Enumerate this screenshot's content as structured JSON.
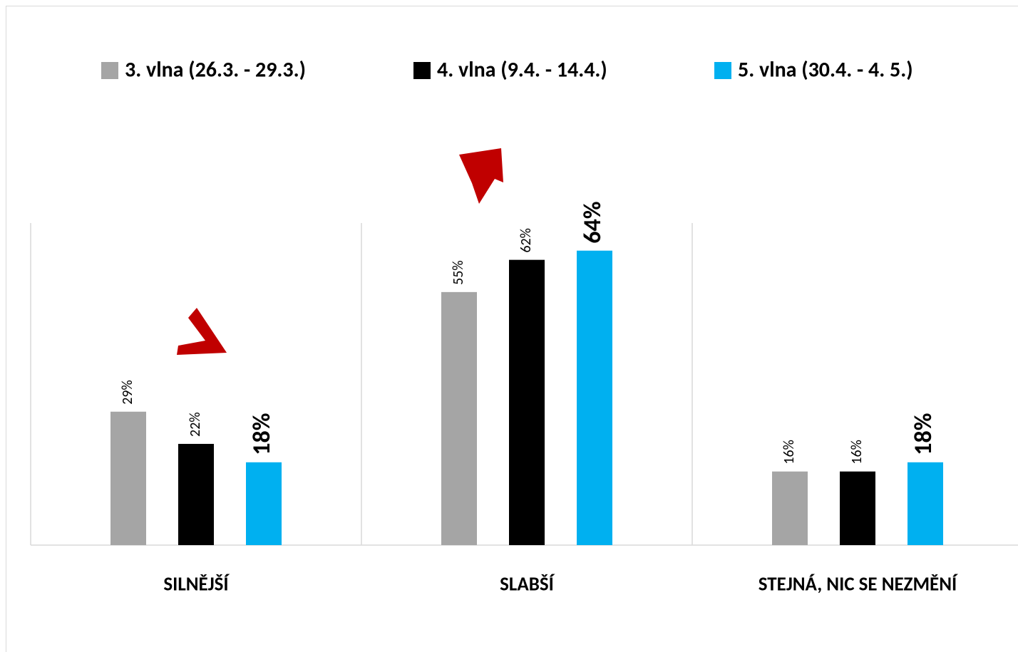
{
  "chart_data": {
    "type": "bar",
    "categories": [
      "SILNĚJŠÍ",
      "SLABŠÍ",
      "STEJNÁ, NIC SE NEZMĚNÍ"
    ],
    "series": [
      {
        "name": "3. vlna (26.3. - 29.3.)",
        "color": "#a5a5a5",
        "values": [
          29,
          55,
          16
        ],
        "value_labels": [
          "29%",
          "55%",
          "16%"
        ]
      },
      {
        "name": "4. vlna (9.4. - 14.4.)",
        "color": "#000000",
        "values": [
          22,
          62,
          16
        ],
        "value_labels": [
          "22%",
          "62%",
          "16%"
        ]
      },
      {
        "name": "5. vlna (30.4. - 4. 5.)",
        "color": "#00b0f0",
        "values": [
          18,
          64,
          18
        ],
        "value_labels": [
          "18%",
          "64%",
          "18%"
        ]
      }
    ],
    "ylim": [
      0,
      70
    ],
    "legend": "top"
  }
}
